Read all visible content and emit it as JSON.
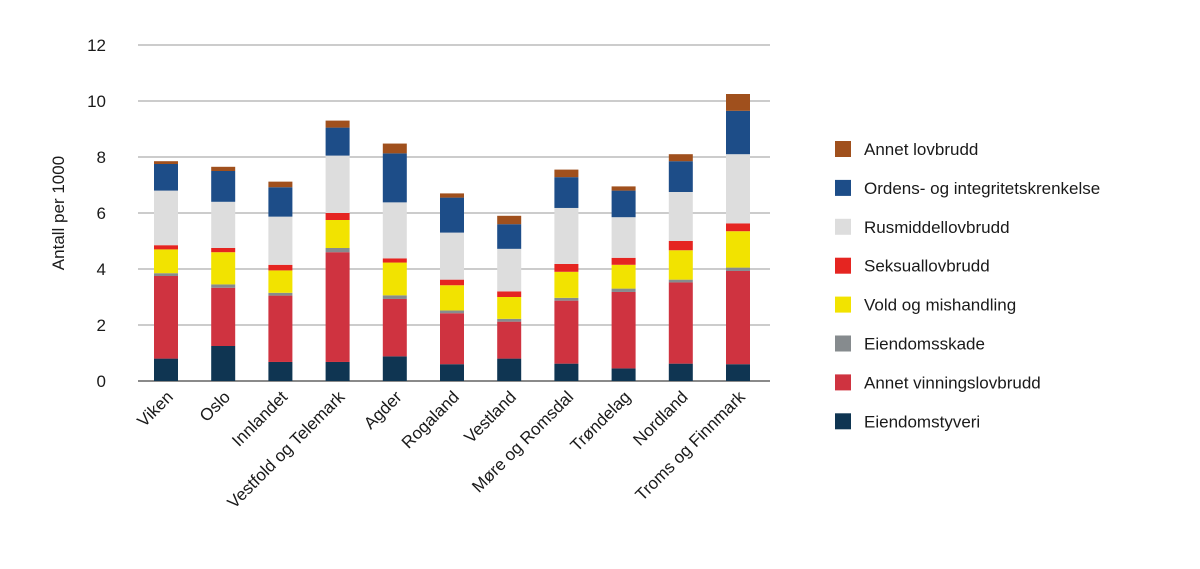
{
  "chart_data": {
    "type": "bar",
    "stacked": true,
    "title": "",
    "xlabel": "",
    "ylabel": "Antall per 1000",
    "ylim": [
      0,
      12
    ],
    "yticks": [
      0,
      2,
      4,
      6,
      8,
      10,
      12
    ],
    "grid": true,
    "legend_position": "right",
    "categories": [
      "Viken",
      "Oslo",
      "Innlandet",
      "Vestfold og Telemark",
      "Agder",
      "Rogaland",
      "Vestland",
      "Møre og Romsdal",
      "Trøndelag",
      "Nordland",
      "Troms og Finnmark"
    ],
    "series": [
      {
        "name": "Eiendomstyveri",
        "color": "#0f3552",
        "values": [
          0.8,
          1.25,
          0.68,
          0.68,
          0.88,
          0.6,
          0.8,
          0.62,
          0.45,
          0.62,
          0.6
        ]
      },
      {
        "name": "Annet vinningslovbrudd",
        "color": "#cf3340",
        "values": [
          2.95,
          2.08,
          2.37,
          3.92,
          2.05,
          1.82,
          1.32,
          2.25,
          2.73,
          2.9,
          3.33
        ]
      },
      {
        "name": "Eiendomsskade",
        "color": "#868b8e",
        "values": [
          0.1,
          0.12,
          0.1,
          0.15,
          0.13,
          0.1,
          0.1,
          0.1,
          0.12,
          0.1,
          0.12
        ]
      },
      {
        "name": "Vold og mishandling",
        "color": "#f2e300",
        "values": [
          0.85,
          1.15,
          0.8,
          1.0,
          1.17,
          0.9,
          0.78,
          0.93,
          0.85,
          1.05,
          1.3
        ]
      },
      {
        "name": "Seksuallovbrudd",
        "color": "#e52521",
        "values": [
          0.15,
          0.15,
          0.2,
          0.25,
          0.15,
          0.2,
          0.2,
          0.28,
          0.25,
          0.33,
          0.28
        ]
      },
      {
        "name": "Rusmiddellovbrudd",
        "color": "#dddddd",
        "values": [
          1.95,
          1.65,
          1.72,
          2.05,
          2.0,
          1.68,
          1.52,
          2.0,
          1.45,
          1.75,
          2.47
        ]
      },
      {
        "name": "Ordens- og integritetskrenkelse",
        "color": "#1d4d88",
        "values": [
          0.95,
          1.1,
          1.05,
          1.0,
          1.75,
          1.25,
          0.88,
          1.1,
          0.95,
          1.1,
          1.55
        ]
      },
      {
        "name": "Annet lovbrudd",
        "color": "#a0501d",
        "values": [
          0.1,
          0.15,
          0.2,
          0.25,
          0.35,
          0.15,
          0.3,
          0.27,
          0.15,
          0.25,
          0.6
        ]
      }
    ]
  }
}
